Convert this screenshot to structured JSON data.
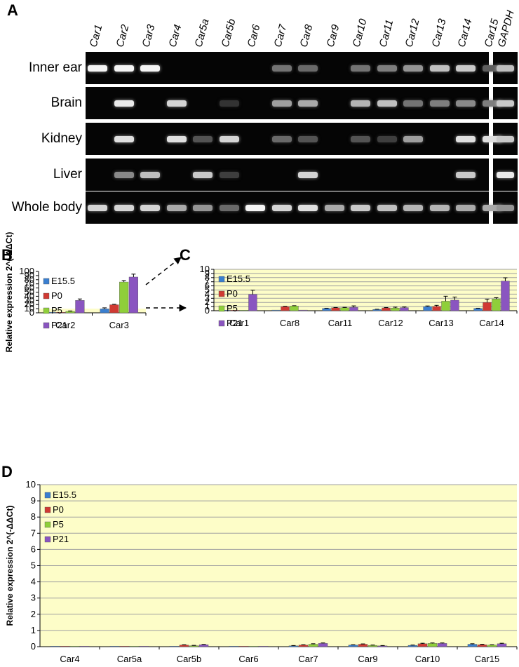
{
  "panel_a": {
    "letter": "A",
    "genes": [
      "Car1",
      "Car2",
      "Car3",
      "Car4",
      "Car5a",
      "Car5b",
      "Car6",
      "Car7",
      "Car8",
      "Car9",
      "Car10",
      "Car11",
      "Car12",
      "Car13",
      "Car14",
      "Car15"
    ],
    "control": "GAPDH",
    "tissues": [
      {
        "name": "Inner ear",
        "bands": [
          0.95,
          0.95,
          0.95,
          0,
          0,
          0,
          0,
          0.35,
          0.3,
          0,
          0.35,
          0.4,
          0.5,
          0.7,
          0.75,
          0.25
        ],
        "gapdh": 0.7
      },
      {
        "name": "Brain",
        "bands": [
          0,
          0.9,
          0,
          0.8,
          0,
          0.05,
          0,
          0.55,
          0.6,
          0,
          0.65,
          0.7,
          0.35,
          0.4,
          0.45,
          0.4
        ],
        "gapdh": 0.75
      },
      {
        "name": "Kidney",
        "bands": [
          0,
          0.85,
          0,
          0.85,
          0.2,
          0.8,
          0,
          0.3,
          0.2,
          0,
          0.2,
          0.1,
          0.55,
          0,
          0.85,
          0.85
        ],
        "gapdh": 0.75
      },
      {
        "name": "Liver",
        "bands": [
          0,
          0.45,
          0.7,
          0,
          0.75,
          0.1,
          0,
          0,
          0.8,
          0,
          0,
          0,
          0,
          0,
          0.75,
          0
        ],
        "gapdh": 0.9
      },
      {
        "name": "Whole body",
        "bands": [
          0.8,
          0.8,
          0.8,
          0.6,
          0.5,
          0.3,
          0.95,
          0.8,
          0.85,
          0.6,
          0.75,
          0.7,
          0.65,
          0.65,
          0.6,
          0.6
        ],
        "gapdh": 0.5
      }
    ]
  },
  "chart_data": [
    {
      "panel": "B",
      "type": "bar",
      "ylabel": "Relative expression 2^(-ΔΔCt)",
      "ylim": [
        0,
        100
      ],
      "yticks": [
        0,
        10,
        20,
        30,
        40,
        50,
        60,
        70,
        80,
        90,
        100
      ],
      "highlight_below": 10,
      "legend": "top-left",
      "categories": [
        "Car2",
        "Car3"
      ],
      "series": [
        {
          "name": "E15.5",
          "color": "#3a7fd0",
          "values": [
            1.5,
            9.5
          ],
          "err": [
            0.5,
            2.5
          ]
        },
        {
          "name": "P0",
          "color": "#d03a33",
          "values": [
            0.8,
            19.5
          ],
          "err": [
            0.3,
            1.2
          ]
        },
        {
          "name": "P5",
          "color": "#8fcf3a",
          "values": [
            3.5,
            74.5
          ],
          "err": [
            1.0,
            3.5
          ]
        },
        {
          "name": "P21",
          "color": "#8a55c0",
          "values": [
            30,
            86.5
          ],
          "err": [
            3.5,
            7.0
          ]
        }
      ]
    },
    {
      "panel": "C",
      "type": "bar",
      "ylim": [
        0,
        10
      ],
      "yticks": [
        0,
        1,
        2,
        3,
        4,
        5,
        6,
        7,
        8,
        9,
        10
      ],
      "legend": "top-left",
      "categories": [
        "Car1",
        "Car8",
        "Car11",
        "Car12",
        "Car13",
        "Car14"
      ],
      "series": [
        {
          "name": "E15.5",
          "color": "#3a7fd0",
          "values": [
            0.02,
            0.15,
            0.55,
            0.3,
            1.0,
            0.55
          ],
          "err": [
            0.01,
            0.05,
            0.05,
            0.05,
            0.15,
            0.05
          ]
        },
        {
          "name": "P0",
          "color": "#d03a33",
          "values": [
            0.05,
            1.0,
            0.72,
            0.68,
            1.05,
            2.0
          ],
          "err": [
            0.02,
            0.08,
            0.05,
            0.08,
            0.25,
            0.8
          ]
        },
        {
          "name": "P5",
          "color": "#8fcf3a",
          "values": [
            0.1,
            1.15,
            0.72,
            0.65,
            2.3,
            2.85
          ],
          "err": [
            0.1,
            0.06,
            0.08,
            0.2,
            1.2,
            0.3
          ]
        },
        {
          "name": "P21",
          "color": "#8a55c0",
          "values": [
            3.95,
            0.15,
            0.82,
            0.75,
            2.55,
            7.15
          ],
          "err": [
            1.0,
            0.05,
            0.35,
            0.15,
            0.75,
            0.8
          ]
        }
      ]
    },
    {
      "panel": "D",
      "type": "bar",
      "ylabel": "Relative expression 2^(-ΔΔCt)",
      "ylim": [
        0,
        10
      ],
      "yticks": [
        0,
        1,
        2,
        3,
        4,
        5,
        6,
        7,
        8,
        9,
        10
      ],
      "legend": "top-left",
      "categories": [
        "Car4",
        "Car5a",
        "Car5b",
        "Car6",
        "Car7",
        "Car9",
        "Car10",
        "Car15"
      ],
      "series": [
        {
          "name": "E15.5",
          "color": "#3a7fd0",
          "values": [
            0.01,
            0.005,
            0.03,
            0.005,
            0.05,
            0.1,
            0.08,
            0.15
          ],
          "err": [
            0.005,
            0.002,
            0.01,
            0.002,
            0.02,
            0.02,
            0.02,
            0.03
          ]
        },
        {
          "name": "P0",
          "color": "#d03a33",
          "values": [
            0.02,
            0.005,
            0.1,
            0.005,
            0.1,
            0.15,
            0.18,
            0.12
          ],
          "err": [
            0.005,
            0.002,
            0.02,
            0.002,
            0.02,
            0.02,
            0.03,
            0.03
          ]
        },
        {
          "name": "P5",
          "color": "#8fcf3a",
          "values": [
            0.03,
            0.005,
            0.06,
            0.005,
            0.15,
            0.08,
            0.2,
            0.1
          ],
          "err": [
            0.005,
            0.002,
            0.02,
            0.002,
            0.03,
            0.02,
            0.03,
            0.02
          ]
        },
        {
          "name": "P21",
          "color": "#8a55c0",
          "values": [
            0.02,
            0.005,
            0.12,
            0.005,
            0.2,
            0.05,
            0.2,
            0.18
          ],
          "err": [
            0.005,
            0.002,
            0.02,
            0.002,
            0.03,
            0.02,
            0.03,
            0.03
          ]
        }
      ]
    }
  ]
}
